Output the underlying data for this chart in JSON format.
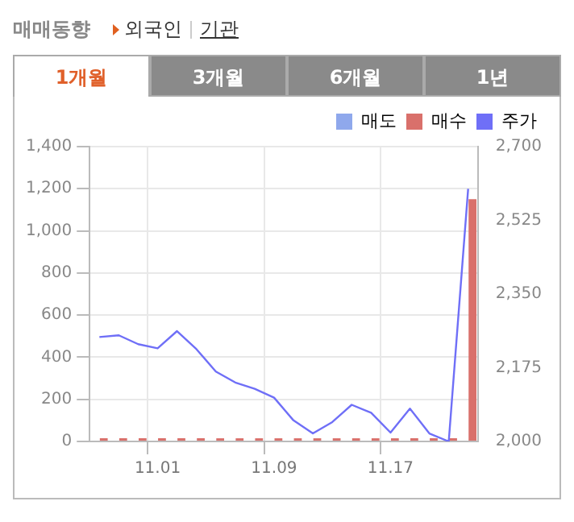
{
  "chart_data": {
    "type": "bar",
    "title": "매매동향",
    "annotations": [
      "외국인",
      "기관",
      "1개월",
      "3개월",
      "6개월",
      "1년"
    ],
    "categories": [
      null,
      null,
      null,
      "11.01",
      null,
      null,
      null,
      null,
      null,
      "11.09",
      null,
      null,
      null,
      null,
      null,
      "11.17",
      null,
      null,
      null,
      null
    ],
    "series": [
      {
        "name": "매도",
        "color": "#8fa8ec",
        "values": [
          0,
          0,
          0,
          0,
          0,
          0,
          0,
          0,
          0,
          0,
          0,
          0,
          0,
          0,
          0,
          0,
          0,
          0,
          0,
          0
        ]
      },
      {
        "name": "매수",
        "color": "#d9706b",
        "values": [
          15,
          15,
          15,
          15,
          15,
          15,
          15,
          15,
          15,
          15,
          15,
          15,
          15,
          15,
          15,
          15,
          15,
          15,
          15,
          1150
        ]
      },
      {
        "name": "주가",
        "type": "line",
        "axis": "y2",
        "color": "#6f6ff7",
        "values": [
          2248,
          2252,
          2231,
          2221,
          2262,
          2219,
          2166,
          2140,
          2125,
          2104,
          2050,
          2019,
          2046,
          2087,
          2068,
          2021,
          2078,
          2019,
          2000,
          2600
        ]
      }
    ],
    "ylim": [
      0,
      1400
    ],
    "yticks": [
      0,
      200,
      400,
      600,
      800,
      {
        "value": 1000,
        "label": "1,000"
      },
      {
        "value": 1200,
        "label": "1,200"
      },
      {
        "value": 1400,
        "label": "1,400"
      }
    ],
    "y2lim": [
      2000,
      2700
    ],
    "y2ticks": [
      {
        "value": 2000,
        "label": "2,000"
      },
      {
        "value": 2175,
        "label": "2,175"
      },
      {
        "value": 2350,
        "label": "2,350"
      },
      {
        "value": 2525,
        "label": "2,525"
      },
      {
        "value": 2700,
        "label": "2,700"
      }
    ],
    "grid": true,
    "legend": "top right",
    "marker": "none"
  }
}
